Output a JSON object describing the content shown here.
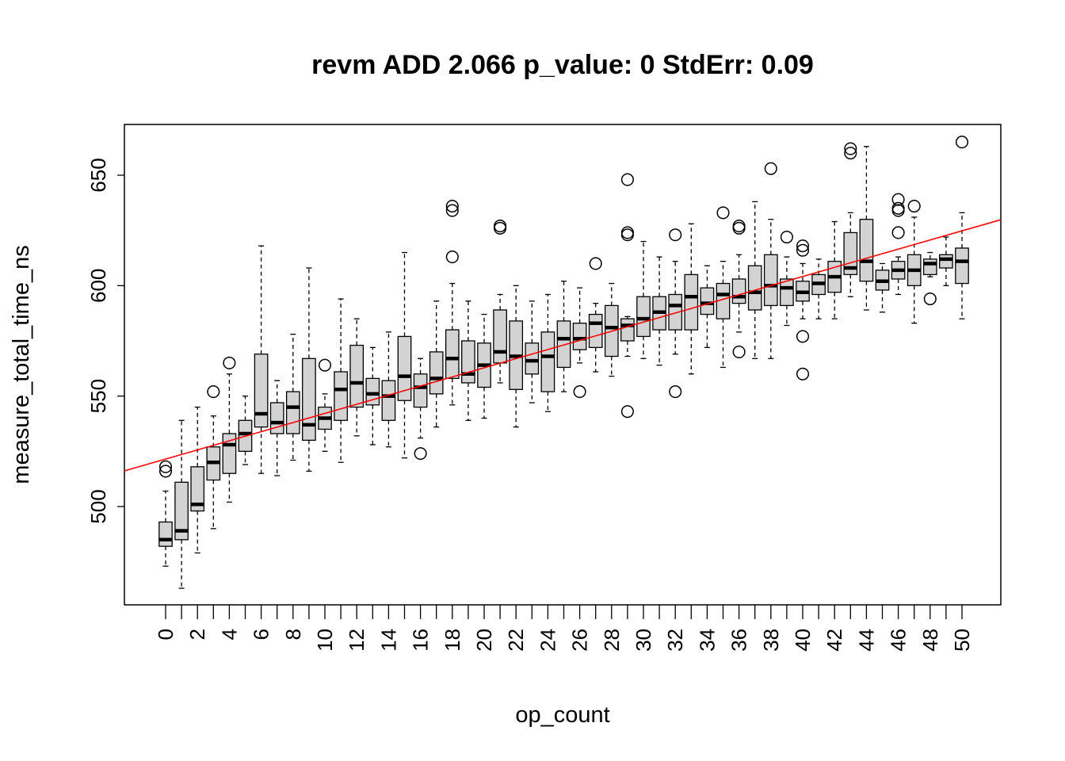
{
  "chart_data": {
    "type": "boxplot",
    "title": "revm ADD 2.066 p_value: 0 StdErr: 0.09",
    "xlabel": "op_count",
    "ylabel": "measure_total_time_ns",
    "ylim": [
      455,
      673
    ],
    "y_ticks": [
      500,
      550,
      600,
      650
    ],
    "x_tick_labels": [
      "0",
      "2",
      "4",
      "6",
      "8",
      "10",
      "12",
      "14",
      "16",
      "18",
      "20",
      "22",
      "24",
      "26",
      "28",
      "30",
      "32",
      "34",
      "36",
      "38",
      "40",
      "42",
      "44",
      "46",
      "48",
      "50"
    ],
    "grid": false,
    "box_fill": "#d3d3d3",
    "regression_color": "#ff0000",
    "regression_line": {
      "intercept": 521.5,
      "slope": 2.066
    },
    "boxes": [
      {
        "x": 0,
        "whisker_low": 473,
        "q1": 482,
        "median": 485,
        "q3": 493,
        "whisker_high": 507,
        "outliers": [
          516,
          518
        ]
      },
      {
        "x": 1,
        "whisker_low": 463,
        "q1": 485,
        "median": 489,
        "q3": 511,
        "whisker_high": 539,
        "outliers": []
      },
      {
        "x": 2,
        "whisker_low": 479,
        "q1": 498,
        "median": 501,
        "q3": 518,
        "whisker_high": 545,
        "outliers": []
      },
      {
        "x": 3,
        "whisker_low": 490,
        "q1": 512,
        "median": 520,
        "q3": 527,
        "whisker_high": 541,
        "outliers": [
          552
        ]
      },
      {
        "x": 4,
        "whisker_low": 502,
        "q1": 515,
        "median": 528,
        "q3": 533,
        "whisker_high": 560,
        "outliers": [
          565
        ]
      },
      {
        "x": 5,
        "whisker_low": 519,
        "q1": 525,
        "median": 533,
        "q3": 539,
        "whisker_high": 550,
        "outliers": []
      },
      {
        "x": 6,
        "whisker_low": 515,
        "q1": 536,
        "median": 542,
        "q3": 569,
        "whisker_high": 618,
        "outliers": []
      },
      {
        "x": 7,
        "whisker_low": 514,
        "q1": 533,
        "median": 538,
        "q3": 547,
        "whisker_high": 557,
        "outliers": []
      },
      {
        "x": 8,
        "whisker_low": 521,
        "q1": 533,
        "median": 545,
        "q3": 552,
        "whisker_high": 578,
        "outliers": []
      },
      {
        "x": 9,
        "whisker_low": 516,
        "q1": 530,
        "median": 537,
        "q3": 567,
        "whisker_high": 608,
        "outliers": []
      },
      {
        "x": 10,
        "whisker_low": 525,
        "q1": 535,
        "median": 540,
        "q3": 545,
        "whisker_high": 551,
        "outliers": [
          564
        ]
      },
      {
        "x": 11,
        "whisker_low": 520,
        "q1": 539,
        "median": 553,
        "q3": 561,
        "whisker_high": 594,
        "outliers": []
      },
      {
        "x": 12,
        "whisker_low": 532,
        "q1": 545,
        "median": 556,
        "q3": 573,
        "whisker_high": 585,
        "outliers": []
      },
      {
        "x": 13,
        "whisker_low": 528,
        "q1": 546,
        "median": 551,
        "q3": 558,
        "whisker_high": 572,
        "outliers": []
      },
      {
        "x": 14,
        "whisker_low": 527,
        "q1": 539,
        "median": 550,
        "q3": 557,
        "whisker_high": 579,
        "outliers": []
      },
      {
        "x": 15,
        "whisker_low": 522,
        "q1": 548,
        "median": 559,
        "q3": 577,
        "whisker_high": 615,
        "outliers": []
      },
      {
        "x": 16,
        "whisker_low": 531,
        "q1": 545,
        "median": 554,
        "q3": 560,
        "whisker_high": 567,
        "outliers": [
          524
        ]
      },
      {
        "x": 17,
        "whisker_low": 536,
        "q1": 551,
        "median": 558,
        "q3": 570,
        "whisker_high": 593,
        "outliers": []
      },
      {
        "x": 18,
        "whisker_low": 546,
        "q1": 558,
        "median": 567,
        "q3": 580,
        "whisker_high": 601,
        "outliers": [
          613,
          634,
          636
        ]
      },
      {
        "x": 19,
        "whisker_low": 539,
        "q1": 556,
        "median": 560,
        "q3": 575,
        "whisker_high": 593,
        "outliers": []
      },
      {
        "x": 20,
        "whisker_low": 540,
        "q1": 554,
        "median": 564,
        "q3": 574,
        "whisker_high": 587,
        "outliers": []
      },
      {
        "x": 21,
        "whisker_low": 556,
        "q1": 565,
        "median": 570,
        "q3": 589,
        "whisker_high": 596,
        "outliers": [
          626,
          627
        ]
      },
      {
        "x": 22,
        "whisker_low": 536,
        "q1": 553,
        "median": 568,
        "q3": 584,
        "whisker_high": 600,
        "outliers": []
      },
      {
        "x": 23,
        "whisker_low": 547,
        "q1": 560,
        "median": 566,
        "q3": 574,
        "whisker_high": 593,
        "outliers": []
      },
      {
        "x": 24,
        "whisker_low": 543,
        "q1": 552,
        "median": 568,
        "q3": 579,
        "whisker_high": 596,
        "outliers": []
      },
      {
        "x": 25,
        "whisker_low": 552,
        "q1": 563,
        "median": 576,
        "q3": 584,
        "whisker_high": 602,
        "outliers": []
      },
      {
        "x": 26,
        "whisker_low": 565,
        "q1": 571,
        "median": 576,
        "q3": 583,
        "whisker_high": 599,
        "outliers": [
          552
        ]
      },
      {
        "x": 27,
        "whisker_low": 561,
        "q1": 572,
        "median": 583,
        "q3": 587,
        "whisker_high": 592,
        "outliers": [
          610
        ]
      },
      {
        "x": 28,
        "whisker_low": 559,
        "q1": 568,
        "median": 581,
        "q3": 591,
        "whisker_high": 601,
        "outliers": []
      },
      {
        "x": 29,
        "whisker_low": 568,
        "q1": 575,
        "median": 582,
        "q3": 585,
        "whisker_high": 586,
        "outliers": [
          543,
          623,
          624,
          648
        ]
      },
      {
        "x": 30,
        "whisker_low": 567,
        "q1": 577,
        "median": 585,
        "q3": 595,
        "whisker_high": 620,
        "outliers": []
      },
      {
        "x": 31,
        "whisker_low": 564,
        "q1": 580,
        "median": 588,
        "q3": 595,
        "whisker_high": 613,
        "outliers": []
      },
      {
        "x": 32,
        "whisker_low": 569,
        "q1": 580,
        "median": 591,
        "q3": 596,
        "whisker_high": 611,
        "outliers": [
          552,
          623
        ]
      },
      {
        "x": 33,
        "whisker_low": 560,
        "q1": 580,
        "median": 595,
        "q3": 605,
        "whisker_high": 628,
        "outliers": []
      },
      {
        "x": 34,
        "whisker_low": 572,
        "q1": 587,
        "median": 592,
        "q3": 599,
        "whisker_high": 609,
        "outliers": []
      },
      {
        "x": 35,
        "whisker_low": 563,
        "q1": 585,
        "median": 596,
        "q3": 601,
        "whisker_high": 611,
        "outliers": [
          633
        ]
      },
      {
        "x": 36,
        "whisker_low": 579,
        "q1": 592,
        "median": 595,
        "q3": 603,
        "whisker_high": 614,
        "outliers": [
          570,
          626,
          627
        ]
      },
      {
        "x": 37,
        "whisker_low": 567,
        "q1": 589,
        "median": 597,
        "q3": 609,
        "whisker_high": 638,
        "outliers": []
      },
      {
        "x": 38,
        "whisker_low": 567,
        "q1": 591,
        "median": 600,
        "q3": 614,
        "whisker_high": 630,
        "outliers": [
          653
        ]
      },
      {
        "x": 39,
        "whisker_low": 582,
        "q1": 591,
        "median": 599,
        "q3": 603,
        "whisker_high": 613,
        "outliers": [
          622
        ]
      },
      {
        "x": 40,
        "whisker_low": 585,
        "q1": 593,
        "median": 597,
        "q3": 602,
        "whisker_high": 610,
        "outliers": [
          560,
          577,
          616,
          618
        ]
      },
      {
        "x": 41,
        "whisker_low": 585,
        "q1": 596,
        "median": 601,
        "q3": 605,
        "whisker_high": 612,
        "outliers": []
      },
      {
        "x": 42,
        "whisker_low": 585,
        "q1": 597,
        "median": 604,
        "q3": 611,
        "whisker_high": 629,
        "outliers": []
      },
      {
        "x": 43,
        "whisker_low": 595,
        "q1": 605,
        "median": 608,
        "q3": 624,
        "whisker_high": 633,
        "outliers": [
          660,
          662
        ]
      },
      {
        "x": 44,
        "whisker_low": 589,
        "q1": 602,
        "median": 611,
        "q3": 630,
        "whisker_high": 663,
        "outliers": []
      },
      {
        "x": 45,
        "whisker_low": 588,
        "q1": 598,
        "median": 602,
        "q3": 607,
        "whisker_high": 610,
        "outliers": []
      },
      {
        "x": 46,
        "whisker_low": 596,
        "q1": 603,
        "median": 607,
        "q3": 611,
        "whisker_high": 613,
        "outliers": [
          624,
          634,
          635,
          639
        ]
      },
      {
        "x": 47,
        "whisker_low": 583,
        "q1": 600,
        "median": 607,
        "q3": 614,
        "whisker_high": 631,
        "outliers": [
          636
        ]
      },
      {
        "x": 48,
        "whisker_low": 604,
        "q1": 605,
        "median": 610,
        "q3": 612,
        "whisker_high": 615,
        "outliers": [
          594
        ]
      },
      {
        "x": 49,
        "whisker_low": 600,
        "q1": 608,
        "median": 612,
        "q3": 614,
        "whisker_high": 622,
        "outliers": []
      },
      {
        "x": 50,
        "whisker_low": 585,
        "q1": 601,
        "median": 611,
        "q3": 617,
        "whisker_high": 633,
        "outliers": [
          665
        ]
      }
    ]
  }
}
